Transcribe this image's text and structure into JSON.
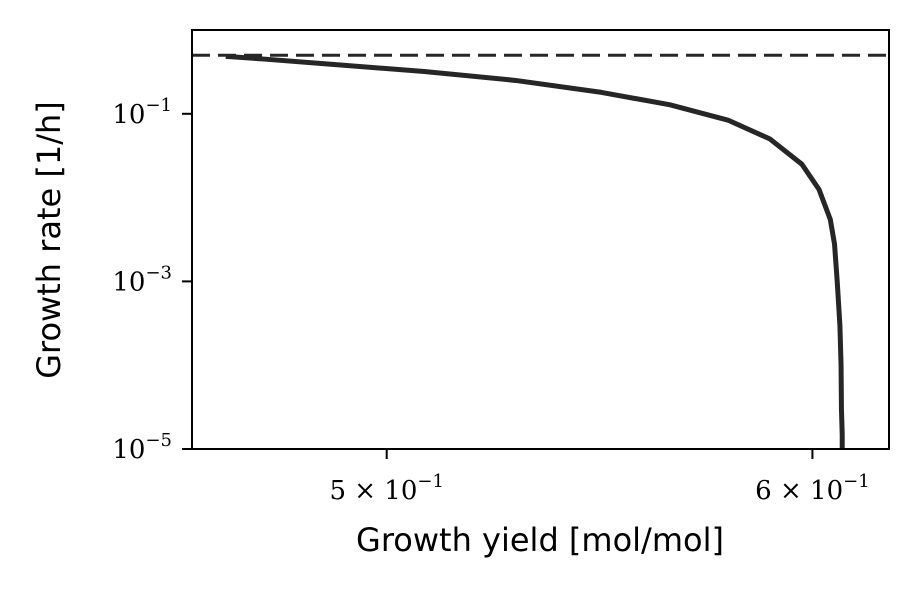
{
  "chart_data": {
    "type": "line",
    "title": "",
    "xlabel": "Growth yield [mol/mol]",
    "ylabel": "Growth rate [1/h]",
    "x_scale": "log",
    "y_scale": "log",
    "xlim": [
      0.46,
      0.62
    ],
    "ylim": [
      1e-05,
      1
    ],
    "x_ticks": [
      {
        "value": 0.5,
        "mantissa": "5",
        "exponent": "−1"
      },
      {
        "value": 0.6,
        "mantissa": "6",
        "exponent": "−1"
      }
    ],
    "y_ticks": [
      {
        "value": 1e-05,
        "base": "10",
        "exponent": "−5"
      },
      {
        "value": 0.001,
        "base": "10",
        "exponent": "−3"
      },
      {
        "value": 0.1,
        "base": "10",
        "exponent": "−1"
      }
    ],
    "grid": false,
    "series": [
      {
        "style": "solid",
        "color": "#262626",
        "x": [
          0.4667,
          0.4744,
          0.4882,
          0.5081,
          0.5284,
          0.5482,
          0.5645,
          0.5787,
          0.5892,
          0.5973,
          0.6017,
          0.6046,
          0.6057,
          0.6064,
          0.6071,
          0.6074,
          0.6075,
          0.6077,
          0.6077
        ],
        "y": [
          0.485,
          0.45,
          0.39,
          0.32,
          0.25,
          0.18,
          0.128,
          0.084,
          0.05,
          0.025,
          0.0125,
          0.0055,
          0.0028,
          0.001,
          0.0003,
          0.0001,
          3e-05,
          1.5e-05,
          1e-05
        ]
      },
      {
        "style": "dashed",
        "color": "#262626",
        "x": [
          0.46,
          0.62
        ],
        "y": [
          0.5,
          0.5
        ]
      }
    ]
  }
}
